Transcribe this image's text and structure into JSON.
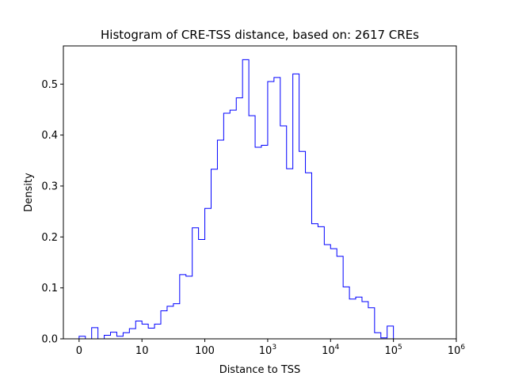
{
  "chart_data": {
    "type": "histogram",
    "title": "Histogram of CRE-TSS distance, based on: 2617 CREs",
    "xlabel": "Distance to TSS",
    "ylabel": "Density",
    "x_scale": "symlog",
    "x_ticks": [
      {
        "value": 0,
        "label": "0"
      },
      {
        "value": 1,
        "label": "10"
      },
      {
        "value": 2,
        "label": "100"
      },
      {
        "value": 3,
        "label": "10",
        "exp": "3"
      },
      {
        "value": 4,
        "label": "10",
        "exp": "4"
      },
      {
        "value": 5,
        "label": "10",
        "exp": "5"
      },
      {
        "value": 6,
        "label": "10",
        "exp": "6"
      }
    ],
    "xlim": [
      -0.25,
      6
    ],
    "ylim": [
      0,
      0.575
    ],
    "y_ticks": [
      0.0,
      0.1,
      0.2,
      0.3,
      0.4,
      0.5
    ],
    "y_tick_labels": [
      "0.0",
      "0.1",
      "0.2",
      "0.3",
      "0.4",
      "0.5"
    ],
    "series": [
      {
        "color": "#0000ff",
        "bin_edges": [
          0.0,
          0.1,
          0.2,
          0.3,
          0.4,
          0.5,
          0.6,
          0.7,
          0.8,
          0.9,
          1.0,
          1.1,
          1.2,
          1.3,
          1.4,
          1.5,
          1.6,
          1.7,
          1.8,
          1.9,
          2.0,
          2.1,
          2.2,
          2.3,
          2.4,
          2.5,
          2.6,
          2.7,
          2.8,
          2.9,
          3.0,
          3.1,
          3.2,
          3.3,
          3.4,
          3.5,
          3.6,
          3.7,
          3.8,
          3.9,
          4.0,
          4.1,
          4.2,
          4.3,
          4.4,
          4.5,
          4.6,
          4.7,
          4.8,
          4.9,
          5.0,
          5.1,
          5.2
        ],
        "density": [
          0.005,
          0.0,
          0.022,
          0.0,
          0.007,
          0.013,
          0.005,
          0.012,
          0.02,
          0.035,
          0.029,
          0.021,
          0.029,
          0.055,
          0.064,
          0.069,
          0.126,
          0.123,
          0.218,
          0.195,
          0.256,
          0.333,
          0.39,
          0.443,
          0.449,
          0.473,
          0.548,
          0.438,
          0.376,
          0.38,
          0.505,
          0.513,
          0.418,
          0.334,
          0.52,
          0.368,
          0.326,
          0.226,
          0.22,
          0.185,
          0.177,
          0.162,
          0.102,
          0.078,
          0.082,
          0.073,
          0.061,
          0.012,
          0.002,
          0.025,
          0.0,
          0.0
        ]
      }
    ]
  }
}
